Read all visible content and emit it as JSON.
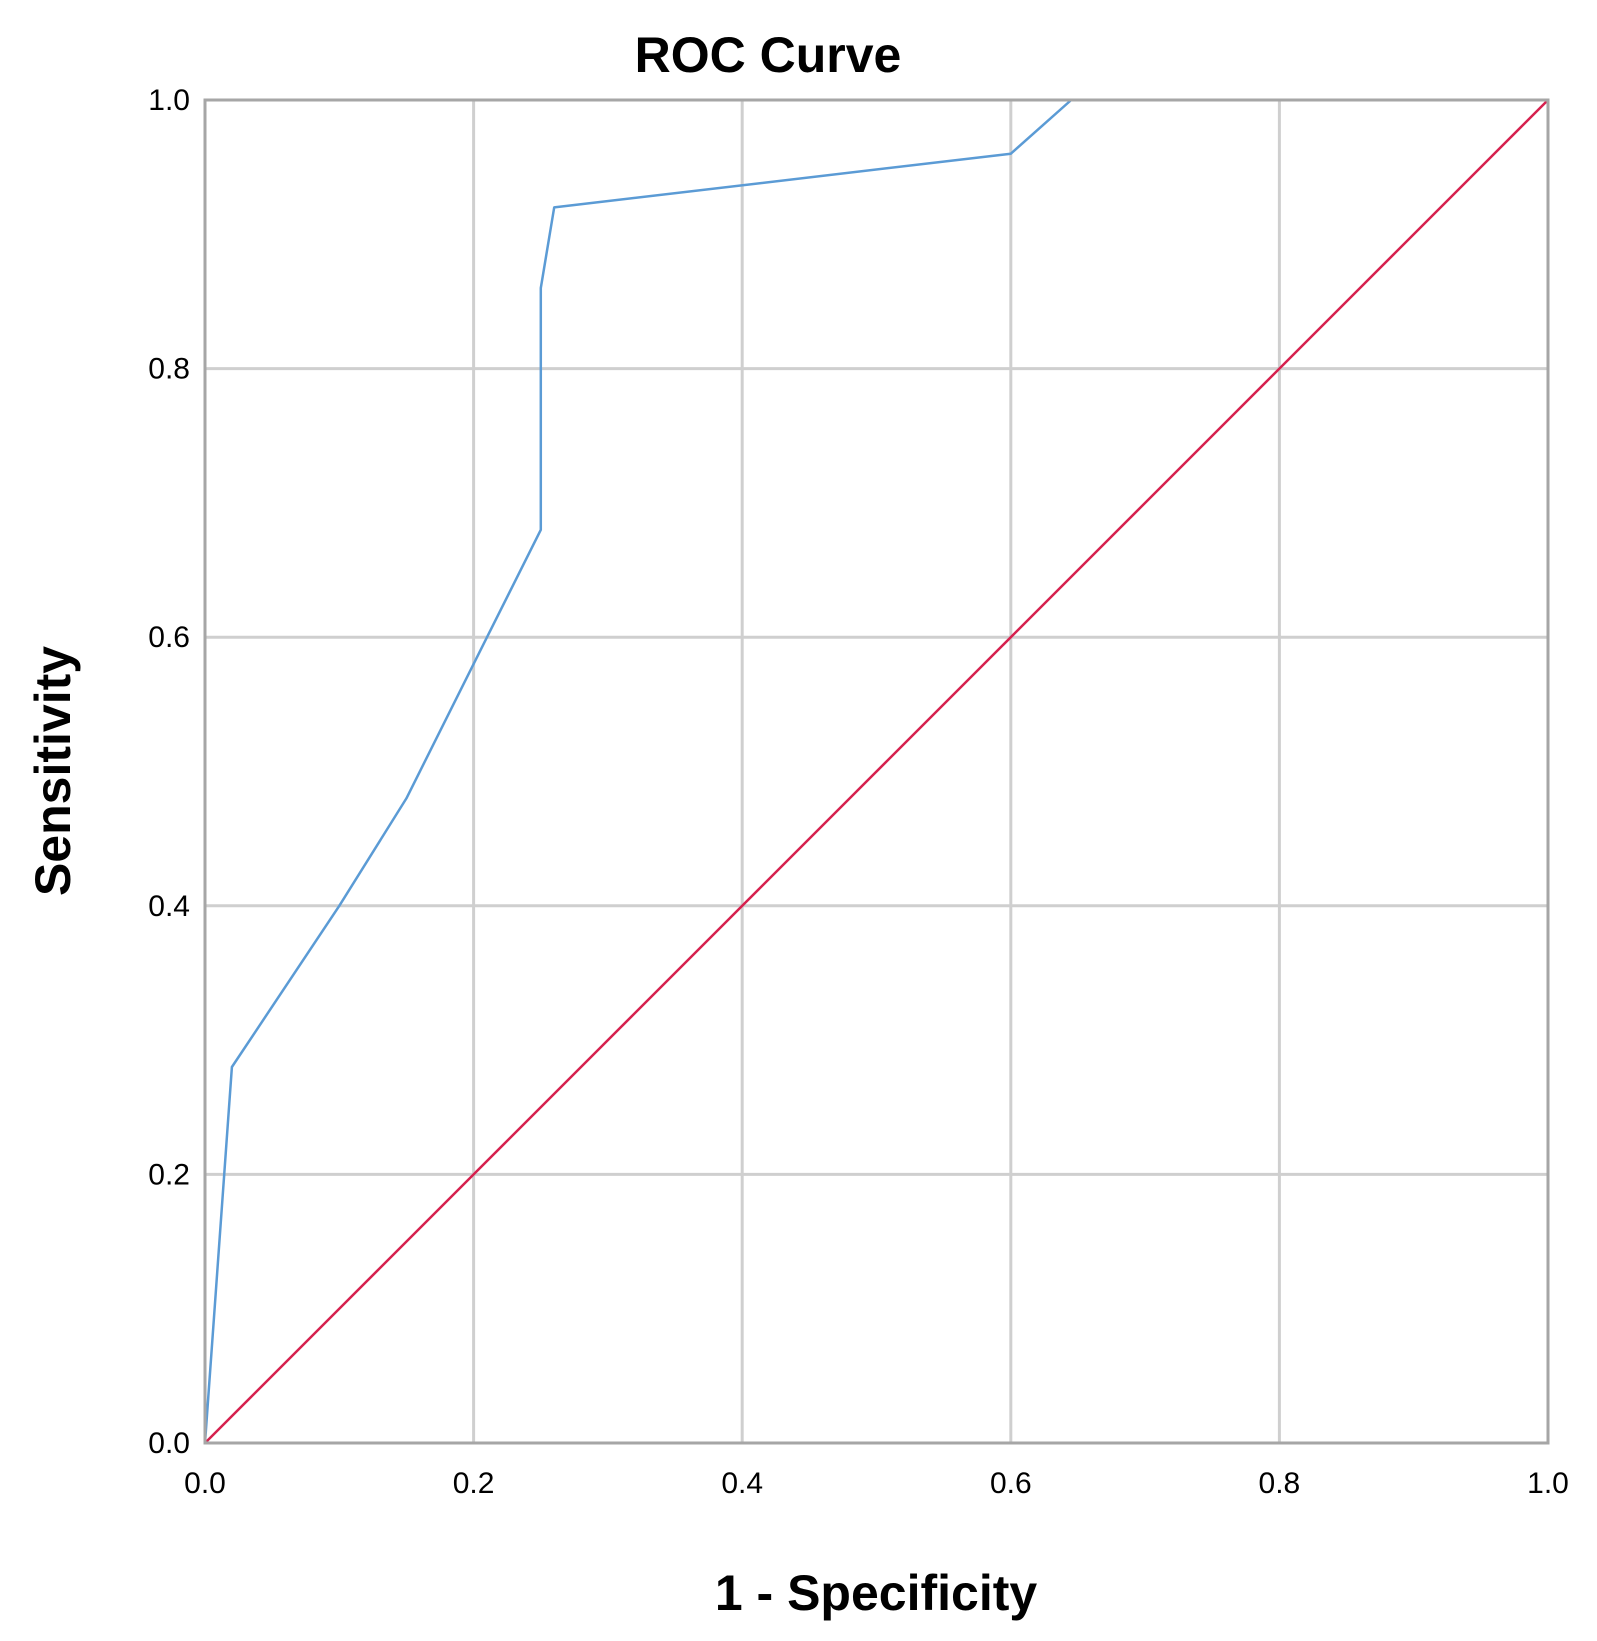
{
  "chart_data": {
    "type": "line",
    "title": "ROC Curve",
    "xlabel": "1 - Specificity",
    "ylabel": "Sensitivity",
    "xlim": [
      0.0,
      1.0
    ],
    "ylim": [
      0.0,
      1.0
    ],
    "x_ticks": [
      "0.0",
      "0.2",
      "0.4",
      "0.6",
      "0.8",
      "1.0"
    ],
    "y_ticks": [
      "0.0",
      "0.2",
      "0.4",
      "0.6",
      "0.8",
      "1.0"
    ],
    "grid": true,
    "legend": "none",
    "series": [
      {
        "color": "#5b9bd5",
        "x": [
          0.0,
          0.02,
          0.1,
          0.15,
          0.21,
          0.25,
          0.25,
          0.26,
          0.6,
          0.645,
          1.0
        ],
        "y": [
          0.0,
          0.28,
          0.4,
          0.48,
          0.6,
          0.68,
          0.86,
          0.92,
          0.96,
          1.0,
          1.0
        ]
      },
      {
        "color": "#d6204e",
        "x": [
          0.0,
          1.0
        ],
        "y": [
          0.0,
          1.0
        ]
      }
    ]
  }
}
